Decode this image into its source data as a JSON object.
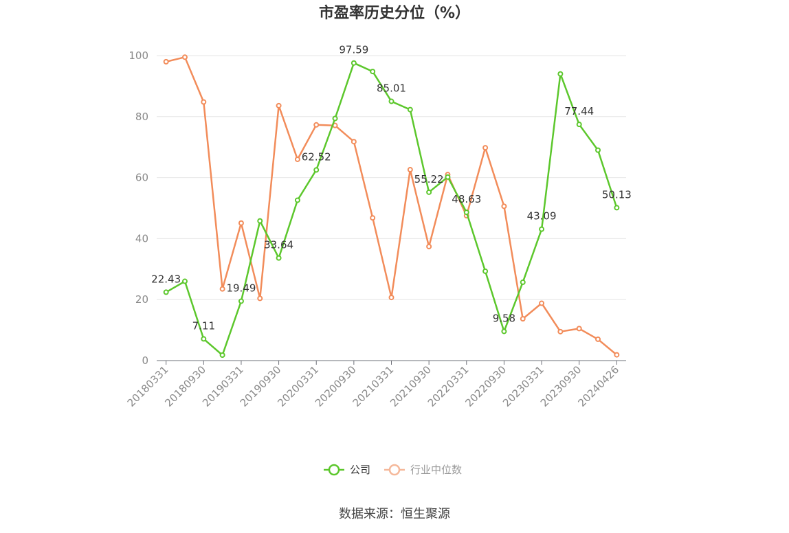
{
  "chart_data": {
    "type": "line",
    "title": "市盈率历史分位（%）",
    "x": [
      "20180331",
      "20180630",
      "20180930",
      "20181231",
      "20190331",
      "20190630",
      "20190930",
      "20191231",
      "20200331",
      "20200630",
      "20200930",
      "20201231",
      "20210331",
      "20210630",
      "20210930",
      "20211231",
      "20220331",
      "20220630",
      "20220930",
      "20221231",
      "20230331",
      "20230630",
      "20230930",
      "20231231",
      "20240426"
    ],
    "x_tick_labels": [
      "20180331",
      "20180930",
      "20190331",
      "20190930",
      "20200331",
      "20200930",
      "20210331",
      "20210930",
      "20220331",
      "20220930",
      "20230331",
      "20230930",
      "20240426"
    ],
    "ylim": [
      0,
      100
    ],
    "yticks": [
      0,
      20,
      40,
      60,
      80,
      100
    ],
    "grid": true,
    "legend_position": "bottom",
    "series": [
      {
        "name": "公司",
        "color": "#5cc72c",
        "values": [
          22.43,
          26.0,
          7.11,
          1.8,
          19.49,
          45.8,
          33.64,
          52.6,
          62.52,
          79.4,
          97.59,
          94.8,
          85.01,
          82.3,
          55.22,
          60.2,
          48.63,
          29.3,
          9.58,
          25.7,
          43.09,
          94.0,
          77.44,
          69.0,
          50.13
        ],
        "labels": {
          "0": "22.43",
          "2": "7.11",
          "4": "19.49",
          "6": "33.64",
          "8": "62.52",
          "10": "97.59",
          "12": "85.01",
          "14": "55.22",
          "16": "48.63",
          "18": "9.58",
          "20": "43.09",
          "22": "77.44",
          "24": "50.13"
        }
      },
      {
        "name": "行业中位数",
        "color": "#f28c5a",
        "values": [
          98.0,
          99.5,
          84.8,
          23.5,
          45.1,
          20.4,
          83.6,
          66.0,
          77.3,
          77.1,
          71.8,
          46.8,
          20.7,
          62.6,
          37.4,
          61.0,
          47.5,
          69.8,
          50.6,
          13.7,
          18.8,
          9.5,
          10.5,
          7.0,
          1.9
        ]
      }
    ],
    "source": "数据来源：恒生聚源"
  }
}
